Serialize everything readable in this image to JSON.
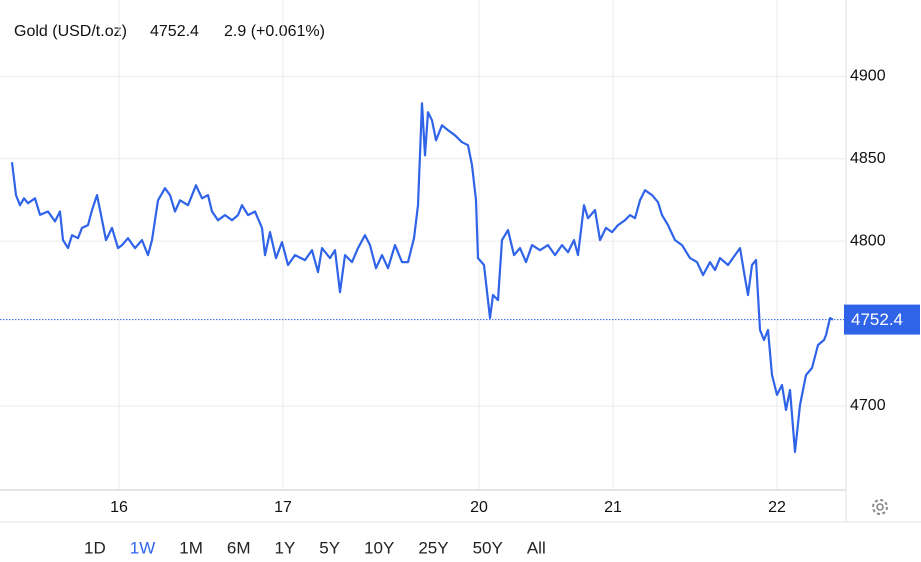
{
  "chart_data": {
    "type": "line",
    "title": "Gold (USD/t.oz)",
    "change": "2.9 (+0.061%)",
    "last_value": 4752.4,
    "color": "#2f63e8",
    "change_color": "#2db92d",
    "grid": true,
    "xlim": [
      0,
      828
    ],
    "ylim": [
      4649,
      4919
    ],
    "xticks": [
      {
        "value": 107,
        "label": "16"
      },
      {
        "value": 271,
        "label": "17"
      },
      {
        "value": 467,
        "label": "20"
      },
      {
        "value": 601,
        "label": "21"
      },
      {
        "value": 765,
        "label": "22"
      }
    ],
    "yticks": [
      4700,
      4800,
      4850,
      4900
    ],
    "x": [
      0,
      4,
      8,
      12,
      16,
      23,
      28,
      36,
      43,
      48,
      51,
      56,
      60,
      66,
      70,
      76,
      80,
      85,
      89,
      94,
      100,
      106,
      110,
      116,
      123,
      130,
      136,
      140,
      146,
      153,
      158,
      163,
      168,
      176,
      184,
      190,
      196,
      200,
      206,
      213,
      220,
      226,
      230,
      236,
      243,
      250,
      253,
      258,
      264,
      270,
      276,
      283,
      293,
      300,
      306,
      310,
      318,
      323,
      328,
      333,
      340,
      346,
      353,
      358,
      364,
      370,
      376,
      383,
      390,
      396,
      402,
      406,
      410,
      413,
      416,
      420,
      424,
      430,
      436,
      443,
      450,
      456,
      460,
      464,
      466,
      472,
      478,
      481,
      486,
      490,
      496,
      502,
      508,
      514,
      520,
      528,
      536,
      543,
      550,
      556,
      562,
      566,
      572,
      576,
      583,
      588,
      594,
      600,
      606,
      613,
      618,
      623,
      628,
      633,
      640,
      646,
      650,
      656,
      663,
      670,
      678,
      685,
      691,
      698,
      703,
      708,
      716,
      723,
      728,
      733,
      736,
      740,
      744,
      748,
      752,
      756,
      760,
      765,
      770,
      774,
      778,
      783,
      788,
      794,
      800,
      806,
      812,
      814,
      818,
      821
    ],
    "values": [
      4847.9,
      4827.9,
      4821.8,
      4826,
      4823,
      4826,
      4816,
      4818,
      4812,
      4818,
      4800.6,
      4795.8,
      4803.6,
      4801.8,
      4808,
      4809.7,
      4818.8,
      4827.9,
      4816,
      4800.6,
      4808,
      4795.8,
      4797.6,
      4801.8,
      4795.8,
      4800.6,
      4791.5,
      4800.6,
      4824.8,
      4832.1,
      4827.9,
      4818,
      4824.8,
      4821.8,
      4833.9,
      4826,
      4827.9,
      4818,
      4812.7,
      4815.8,
      4812.7,
      4815.8,
      4821.8,
      4815.8,
      4818,
      4808,
      4791.5,
      4805.5,
      4789.7,
      4799.4,
      4785.5,
      4791.5,
      4788.5,
      4794.5,
      4781.2,
      4795.8,
      4789.7,
      4794.5,
      4769.1,
      4791.5,
      4787.3,
      4795.8,
      4803.6,
      4797.6,
      4783.6,
      4791.5,
      4783.6,
      4797.6,
      4787.3,
      4787.3,
      4801.8,
      4821.8,
      4883.6,
      4852.1,
      4878.2,
      4873.3,
      4861.2,
      4870.3,
      4867.3,
      4864.2,
      4860,
      4858.2,
      4846.1,
      4824.8,
      4789.7,
      4785.5,
      4753.3,
      4767.3,
      4764.2,
      4800.6,
      4806.7,
      4791.5,
      4795.8,
      4787.3,
      4797.6,
      4794.5,
      4797.6,
      4791.5,
      4797.6,
      4793.3,
      4800.6,
      4791.5,
      4821.8,
      4813.9,
      4818.8,
      4800.6,
      4808,
      4805.5,
      4809.7,
      4812.7,
      4815.8,
      4813.9,
      4824.8,
      4830.9,
      4827.9,
      4823.6,
      4815.8,
      4809.7,
      4800.6,
      4797.6,
      4789.7,
      4787.3,
      4779.4,
      4787.3,
      4782.4,
      4789.7,
      4785.5,
      4791.5,
      4795.8,
      4777.6,
      4767.3,
      4785.5,
      4788.5,
      4746.1,
      4740,
      4746.1,
      4718.8,
      4706.7,
      4712.7,
      4697.6,
      4709.7,
      4672.1,
      4700.6,
      4718.8,
      4723,
      4737,
      4740,
      4743,
      4753.3,
      4752.4
    ],
    "ranges": [
      "1D",
      "1W",
      "1M",
      "6M",
      "1Y",
      "5Y",
      "10Y",
      "25Y",
      "50Y",
      "All"
    ],
    "active_range": 1
  }
}
